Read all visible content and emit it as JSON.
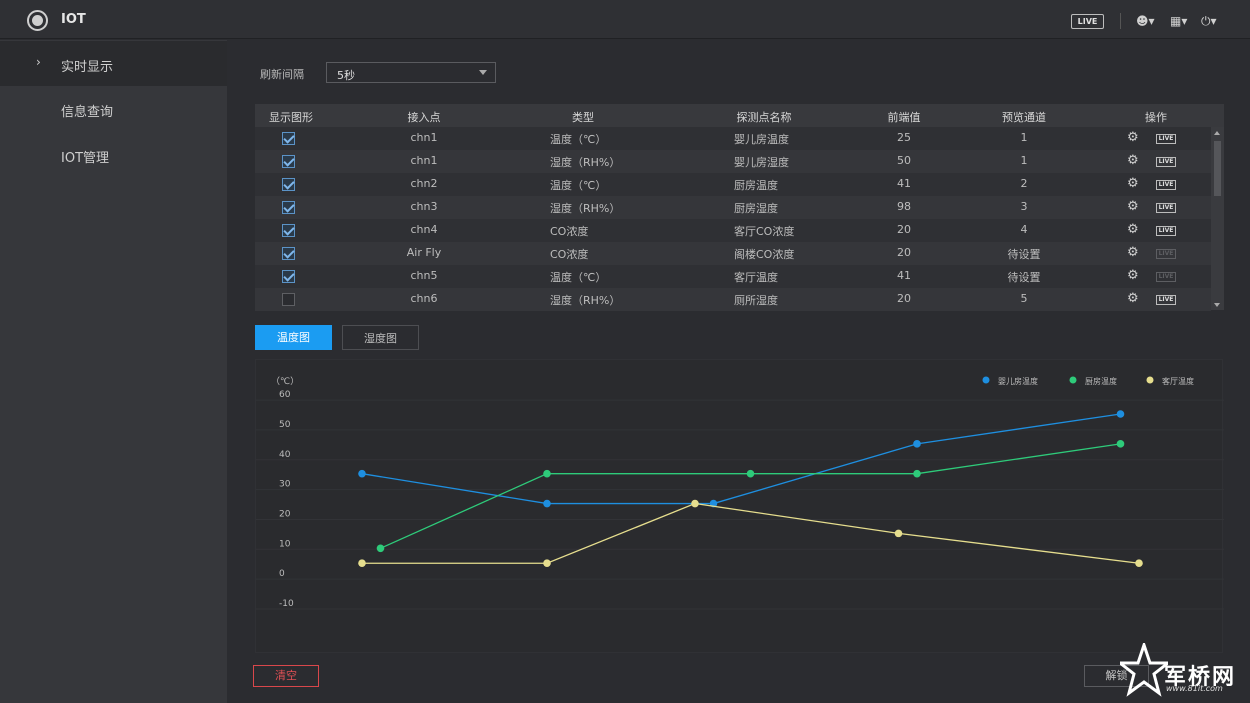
{
  "header": {
    "app_title": "IOT",
    "live_label": "LIVE"
  },
  "sidebar": {
    "items": [
      {
        "label": "实时显示",
        "active": true
      },
      {
        "label": "信息查询",
        "active": false
      },
      {
        "label": "IOT管理",
        "active": false
      }
    ]
  },
  "refresh": {
    "label": "刷新间隔",
    "value": "5秒"
  },
  "table": {
    "headers": [
      "显示图形",
      "接入点",
      "类型",
      "探测点名称",
      "前端值",
      "预览通道",
      "操作"
    ],
    "rows": [
      {
        "checked": true,
        "access": "chn1",
        "type": "温度（℃）",
        "name": "婴儿房温度",
        "value": "25",
        "channel": "1",
        "live_enabled": true
      },
      {
        "checked": true,
        "access": "chn1",
        "type": "湿度（RH%）",
        "name": "婴儿房湿度",
        "value": "50",
        "channel": "1",
        "live_enabled": true
      },
      {
        "checked": true,
        "access": "chn2",
        "type": "温度（℃）",
        "name": "厨房温度",
        "value": "41",
        "channel": "2",
        "live_enabled": true
      },
      {
        "checked": true,
        "access": "chn3",
        "type": "湿度（RH%）",
        "name": "厨房湿度",
        "value": "98",
        "channel": "3",
        "live_enabled": true
      },
      {
        "checked": true,
        "access": "chn4",
        "type": "CO浓度",
        "name": "客厅CO浓度",
        "value": "20",
        "channel": "4",
        "live_enabled": true
      },
      {
        "checked": true,
        "access": "Air Fly",
        "type": "CO浓度",
        "name": "阁楼CO浓度",
        "value": "20",
        "channel": "待设置",
        "live_enabled": false
      },
      {
        "checked": true,
        "access": "chn5",
        "type": "温度（℃）",
        "name": "客厅温度",
        "value": "41",
        "channel": "待设置",
        "live_enabled": false
      },
      {
        "checked": false,
        "access": "chn6",
        "type": "湿度（RH%）",
        "name": "厕所湿度",
        "value": "20",
        "channel": "5",
        "live_enabled": true
      }
    ],
    "live_label": "LIVE"
  },
  "tabs": [
    {
      "label": "温度图",
      "active": true
    },
    {
      "label": "湿度图",
      "active": false
    }
  ],
  "chart_data": {
    "type": "line",
    "title": "",
    "ylabel": "（℃）",
    "ylim": [
      -10,
      60
    ],
    "yticks": [
      60,
      50,
      40,
      30,
      20,
      10,
      0,
      -10
    ],
    "grid": true,
    "legend_position": "top-right",
    "series": [
      {
        "name": "婴儿房温度",
        "color": "#1e8fe0",
        "points": [
          [
            0,
            35
          ],
          [
            1,
            25
          ],
          [
            1.9,
            25
          ],
          [
            3,
            45
          ],
          [
            4.1,
            55
          ]
        ]
      },
      {
        "name": "厨房温度",
        "color": "#2ecb7a",
        "points": [
          [
            0.1,
            10
          ],
          [
            1,
            35
          ],
          [
            2.1,
            35
          ],
          [
            3,
            35
          ],
          [
            4.1,
            45
          ]
        ]
      },
      {
        "name": "客厅温度",
        "color": "#e6de8e",
        "points": [
          [
            0,
            5
          ],
          [
            1,
            5
          ],
          [
            1.8,
            25
          ],
          [
            2.9,
            15
          ],
          [
            4.2,
            5
          ]
        ]
      }
    ]
  },
  "buttons": {
    "clear": "清空",
    "unlock": "解锁"
  },
  "watermark": {
    "text": "军桥网",
    "url": "www.81it.com"
  }
}
